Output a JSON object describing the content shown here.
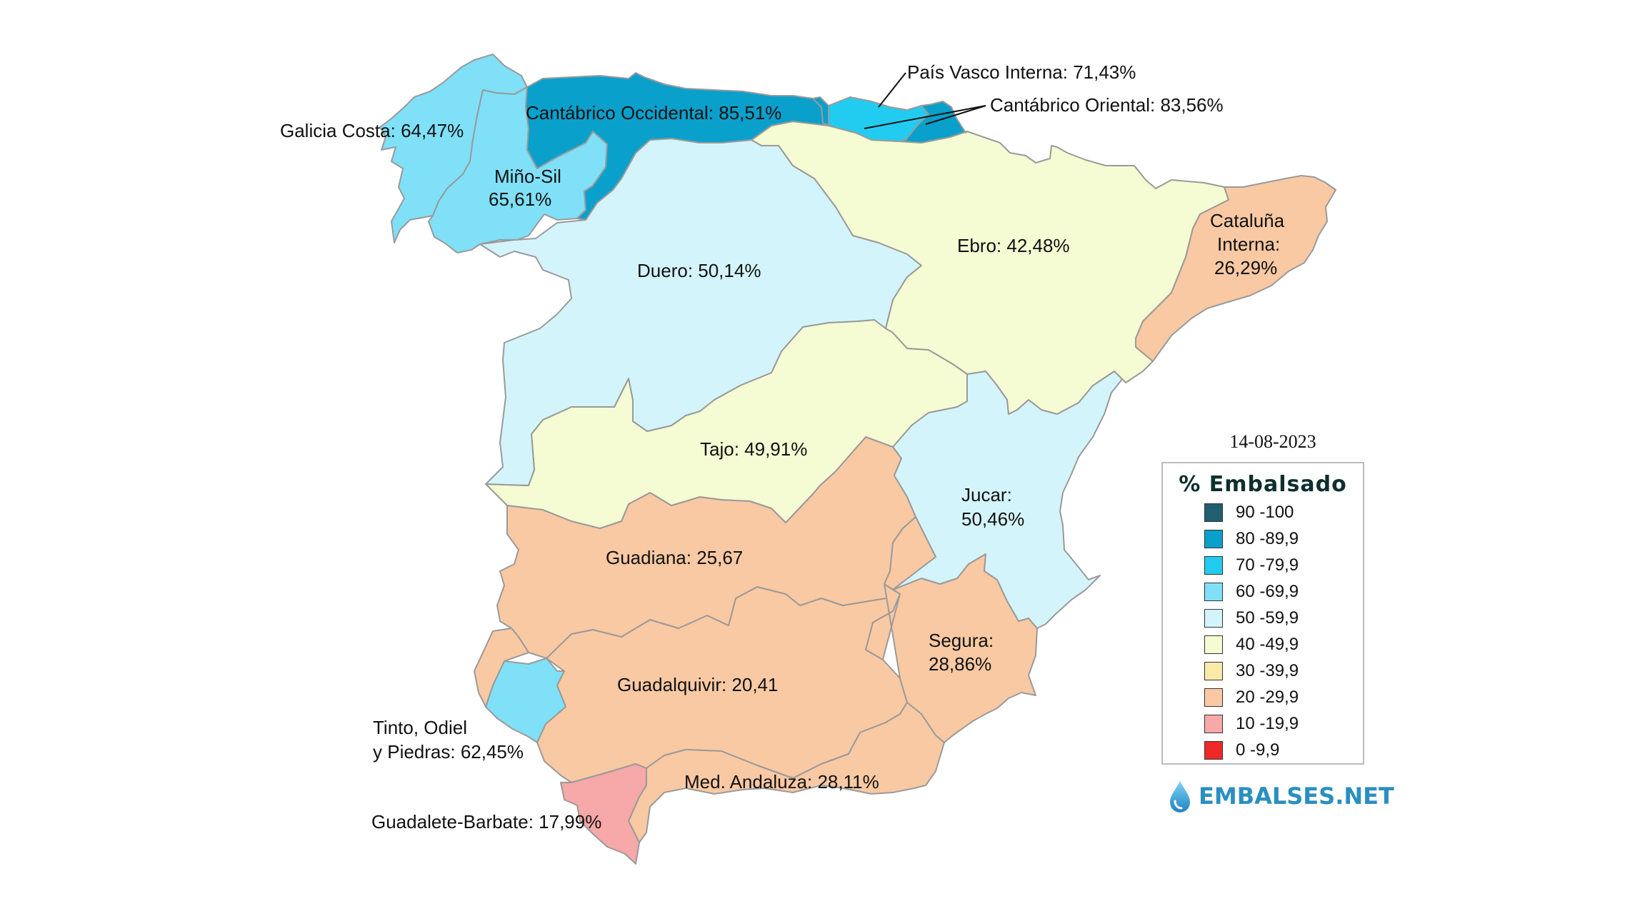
{
  "date": "14-08-2023",
  "legend": {
    "title": "% Embalsado",
    "items": [
      {
        "label": "90 -100",
        "color": "#1f5f6f"
      },
      {
        "label": "80 -89,9",
        "color": "#0aa0cc"
      },
      {
        "label": "70 -79,9",
        "color": "#22ccf0"
      },
      {
        "label": "60 -69,9",
        "color": "#7fe0f8"
      },
      {
        "label": "50 -59,9",
        "color": "#d4f4fb"
      },
      {
        "label": "40 -49,9",
        "color": "#f5fbd2"
      },
      {
        "label": "30 -39,9",
        "color": "#fbe9a8"
      },
      {
        "label": "20 -29,9",
        "color": "#f9c9a3"
      },
      {
        "label": "10 -19,9",
        "color": "#f7a8a8"
      },
      {
        "label": "0 -9,9",
        "color": "#f02828"
      }
    ]
  },
  "brand": {
    "text": "EMBALSES.NET",
    "icon": "water-drop-icon"
  },
  "basins": [
    {
      "id": "galicia-costa",
      "name": "Galicia Costa",
      "value": "64,47%",
      "label": "Galicia Costa: 64,47%",
      "color": "#7fe0f8"
    },
    {
      "id": "mino-sil",
      "name": "Miño-Sil",
      "value": "65,61%",
      "label_lines": [
        "Miño-Sil",
        "65,61%"
      ],
      "color": "#7fe0f8"
    },
    {
      "id": "cantabrico-occidental",
      "name": "Cantábrico Occidental",
      "value": "85,51%",
      "label": "Cantábrico Occidental: 85,51%",
      "color": "#0aa0cc"
    },
    {
      "id": "pais-vasco-interna",
      "name": "País Vasco Interna",
      "value": "71,43%",
      "label": "País Vasco Interna: 71,43%",
      "color": "#22ccf0"
    },
    {
      "id": "cantabrico-oriental",
      "name": "Cantábrico Oriental",
      "value": "83,56%",
      "label": "Cantábrico Oriental: 83,56%",
      "color": "#0aa0cc"
    },
    {
      "id": "duero",
      "name": "Duero",
      "value": "50,14%",
      "label": "Duero: 50,14%",
      "color": "#d4f4fb"
    },
    {
      "id": "ebro",
      "name": "Ebro",
      "value": "42,48%",
      "label": "Ebro: 42,48%",
      "color": "#f5fbd2"
    },
    {
      "id": "cataluna-interna",
      "name": "Cataluña Interna",
      "value": "26,29%",
      "label_lines": [
        "Cataluña",
        "Interna:",
        "26,29%"
      ],
      "color": "#f9c9a3"
    },
    {
      "id": "tajo",
      "name": "Tajo",
      "value": "49,91%",
      "label": "Tajo: 49,91%",
      "color": "#f5fbd2"
    },
    {
      "id": "jucar",
      "name": "Jucar",
      "value": "50,46%",
      "label_lines": [
        "Jucar:",
        "50,46%"
      ],
      "color": "#d4f4fb"
    },
    {
      "id": "guadiana",
      "name": "Guadiana",
      "value": "25,67",
      "label": "Guadiana: 25,67",
      "color": "#f9c9a3"
    },
    {
      "id": "segura",
      "name": "Segura",
      "value": "28,86%",
      "label_lines": [
        "Segura:",
        "28,86%"
      ],
      "color": "#f9c9a3"
    },
    {
      "id": "guadalquivir",
      "name": "Guadalquivir",
      "value": "20,41",
      "label": "Guadalquivir: 20,41",
      "color": "#f9c9a3"
    },
    {
      "id": "tinto-odiel-piedras",
      "name": "Tinto, Odiel y Piedras",
      "value": "62,45%",
      "label_lines": [
        "Tinto, Odiel",
        "y Piedras: 62,45%"
      ],
      "color": "#7fe0f8"
    },
    {
      "id": "med-andaluza",
      "name": "Med. Andaluza",
      "value": "28,11%",
      "label": "Med. Andaluza: 28,11%",
      "color": "#f9c9a3"
    },
    {
      "id": "guadalete-barbate",
      "name": "Guadalete-Barbate",
      "value": "17,99%",
      "label": "Guadalete-Barbate: 17,99%",
      "color": "#f7a8a8"
    }
  ]
}
